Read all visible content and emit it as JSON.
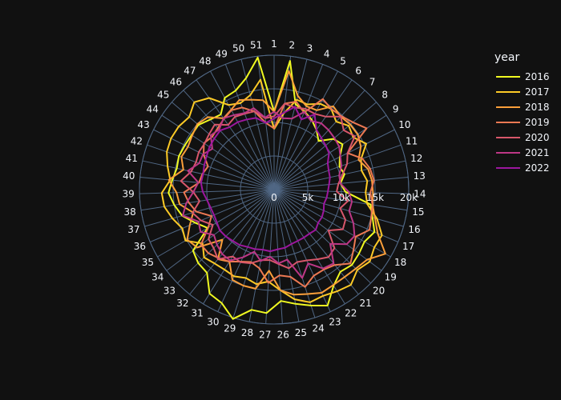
{
  "chart_data": {
    "type": "line",
    "subtype": "polar",
    "theta_categories": [
      "1",
      "2",
      "3",
      "4",
      "5",
      "6",
      "7",
      "8",
      "9",
      "10",
      "11",
      "12",
      "13",
      "14",
      "15",
      "16",
      "17",
      "18",
      "19",
      "20",
      "21",
      "22",
      "23",
      "24",
      "25",
      "26",
      "27",
      "28",
      "29",
      "30",
      "31",
      "32",
      "33",
      "34",
      "35",
      "36",
      "37",
      "38",
      "39",
      "40",
      "41",
      "42",
      "43",
      "44",
      "45",
      "46",
      "47",
      "48",
      "49",
      "50",
      "51"
    ],
    "radial_ticks": [
      0,
      5000,
      10000,
      15000,
      20000
    ],
    "radial_tick_labels": [
      "0",
      "5k",
      "10k",
      "15k",
      "20k"
    ],
    "radial_range": [
      0,
      20000
    ],
    "angular_direction": "clockwise",
    "angular_rotation_deg": 90,
    "grid": true,
    "legend_title": "year",
    "legend_position": "top-right",
    "colors": {
      "background": "#111111",
      "grid": "#506784",
      "text": "#f2f5fa"
    },
    "series": [
      {
        "name": "2016",
        "color": "#f0f921",
        "values": [
          11600,
          19300,
          13100,
          12500,
          11800,
          10900,
          9800,
          11600,
          12200,
          10900,
          10300,
          10700,
          9900,
          10600,
          14500,
          15200,
          16200,
          15500,
          15800,
          16100,
          15700,
          16800,
          19000,
          18100,
          17300,
          16600,
          18400,
          18200,
          20200,
          18600,
          18200,
          15900,
          15700,
          15100,
          11400,
          12700,
          14200,
          15000,
          15700,
          15200,
          14800,
          15000,
          14800,
          14700,
          14800,
          14100,
          13700,
          15500,
          15800,
          17100,
          19800
        ]
      },
      {
        "name": "2017",
        "color": "#fdca26",
        "values": [
          9000,
          11400,
          13800,
          13600,
          14500,
          14700,
          13700,
          14600,
          14100,
          15300,
          13700,
          13300,
          13900,
          13600,
          14000,
          15900,
          17400,
          17200,
          17800,
          17200,
          18200,
          17800,
          17400,
          17600,
          16600,
          15000,
          13700,
          14300,
          13800,
          14200,
          14000,
          14100,
          14500,
          13300,
          15200,
          14800,
          15700,
          16500,
          16700,
          15500,
          16200,
          16900,
          17100,
          17000,
          16600,
          17600,
          16700,
          14300,
          13800,
          14500,
          16500
        ]
      },
      {
        "name": "2018",
        "color": "#fb9f3a",
        "values": [
          11600,
          17800,
          14400,
          13300,
          13400,
          15200,
          14700,
          14900,
          14900,
          14400,
          13300,
          14300,
          14600,
          14700,
          14800,
          15600,
          16700,
          19100,
          17300,
          16900,
          16700,
          16700,
          16900,
          16300,
          15900,
          15000,
          12100,
          15000,
          15000,
          14800,
          12600,
          13300,
          10700,
          14300,
          14900,
          13600,
          12500,
          14200,
          14500,
          15700,
          13800,
          14600,
          14300,
          14600,
          15000,
          14600,
          13000,
          13500,
          14300,
          13800,
          13400
        ]
      },
      {
        "name": "2019",
        "color": "#ed7953",
        "values": [
          9100,
          12900,
          13500,
          12300,
          15300,
          14700,
          14800,
          15400,
          16500,
          12200,
          13900,
          14600,
          14900,
          14300,
          14800,
          15000,
          15400,
          14000,
          14800,
          15800,
          14400,
          14000,
          14100,
          15200,
          13200,
          12800,
          13900,
          11900,
          11300,
          11800,
          12600,
          13100,
          13600,
          13600,
          11300,
          10100,
          12000,
          12800,
          13400,
          11200,
          10900,
          10400,
          11700,
          12500,
          12100,
          12400,
          12900,
          13400,
          13100,
          12000,
          10000
        ]
      },
      {
        "name": "2020",
        "color": "#d8576b",
        "values": [
          10900,
          12900,
          12600,
          12900,
          12800,
          13300,
          14700,
          13600,
          14400,
          12200,
          11500,
          10400,
          9600,
          9300,
          11100,
          10200,
          11500,
          11800,
          10100,
          12500,
          12900,
          12200,
          11600,
          11300,
          11900,
          11100,
          10500,
          10700,
          11500,
          11900,
          11700,
          13300,
          12500,
          12200,
          10500,
          11800,
          12600,
          11200,
          12000,
          13900,
          12600,
          12300,
          12500,
          12400,
          12700,
          13100,
          11800,
          12300,
          12100,
          12000,
          10700
        ]
      },
      {
        "name": "2021",
        "color": "#bd3786",
        "values": [
          11600,
          10700,
          10900,
          12400,
          11600,
          12100,
          12000,
          11800,
          11600,
          11000,
          10600,
          9900,
          9900,
          11100,
          11700,
          11600,
          12800,
          13800,
          13500,
          11600,
          14100,
          13800,
          12100,
          13800,
          10600,
          11000,
          10000,
          10800,
          9700,
          11100,
          12400,
          12300,
          11800,
          11200,
          12600,
          12200,
          14100,
          13200,
          12000,
          11300,
          13100,
          11800,
          11800,
          11000,
          12400,
          12100,
          13000,
          12600,
          12200,
          12500,
          10800
        ]
      },
      {
        "name": "2022",
        "color": "#9c179e",
        "values": [
          10600,
          11500,
          12700,
          11200,
          12700,
          10900,
          10400,
          10100,
          9800,
          8900,
          8600,
          8500,
          8200,
          8000,
          7900,
          7700,
          8000,
          8200,
          8200,
          8600,
          8400,
          8400,
          8400,
          8500,
          8800,
          8900,
          9200,
          9100,
          9300,
          9400,
          9700,
          9800,
          10000,
          10100,
          9800,
          9700,
          9800,
          10100,
          10600,
          10900,
          10800,
          11000,
          11200,
          11500,
          11700,
          11900,
          11400,
          11400,
          11200,
          11000,
          10000
        ]
      }
    ]
  }
}
